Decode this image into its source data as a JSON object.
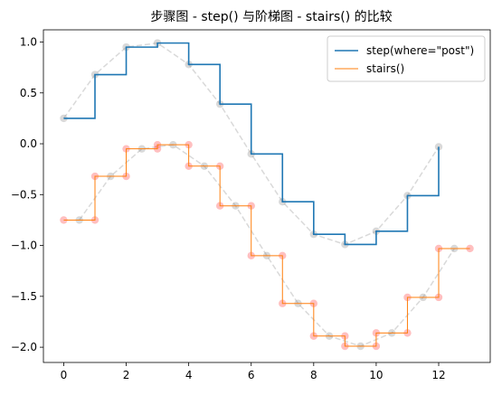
{
  "chart_data": {
    "type": "line",
    "title": "步骤图 - step()  与阶梯图 - stairs()  的比较",
    "xlabel": "",
    "ylabel": "",
    "xlim": [
      -0.65,
      13.65
    ],
    "ylim": [
      -2.15,
      1.12
    ],
    "x_ticks": [
      0,
      2,
      4,
      6,
      8,
      10,
      12
    ],
    "y_ticks": [
      1.0,
      0.5,
      0.0,
      -0.5,
      -1.0,
      -1.5,
      -2.0
    ],
    "x_tick_labels": [
      "0",
      "2",
      "4",
      "6",
      "8",
      "10",
      "12"
    ],
    "y_tick_labels": [
      "1.0",
      "0.5",
      "0.0",
      "−0.5",
      "−1.0",
      "−1.5",
      "−2.0"
    ],
    "grid": false,
    "legend_position": "top-right",
    "series": [
      {
        "name": "step(where=\"post\")",
        "kind": "step-post",
        "color": "#1f77b4",
        "x": [
          0,
          1,
          2,
          3,
          4,
          5,
          6,
          7,
          8,
          9,
          10,
          11,
          12
        ],
        "y": [
          0.25,
          0.68,
          0.95,
          0.99,
          0.78,
          0.39,
          -0.1,
          -0.57,
          -0.89,
          -0.99,
          -0.86,
          -0.51,
          -0.03
        ]
      },
      {
        "name": "stairs()",
        "kind": "stairs",
        "color": "#ff7f0e",
        "edges": [
          0,
          1,
          2,
          3,
          4,
          5,
          6,
          7,
          8,
          9,
          10,
          11,
          12,
          13
        ],
        "values": [
          -0.75,
          -0.32,
          -0.05,
          -0.01,
          -0.22,
          -0.61,
          -1.1,
          -1.57,
          -1.89,
          -1.99,
          -1.86,
          -1.51,
          -1.03
        ]
      }
    ],
    "reference_curves": [
      {
        "color": "#808080",
        "x": [
          0,
          1,
          2,
          3,
          4,
          5,
          6,
          7,
          8,
          9,
          10,
          11,
          12
        ],
        "y": [
          0.25,
          0.68,
          0.95,
          0.99,
          0.78,
          0.39,
          -0.1,
          -0.57,
          -0.89,
          -0.99,
          -0.86,
          -0.51,
          -0.03
        ]
      },
      {
        "color": "#808080",
        "x": [
          0.5,
          1.5,
          2.5,
          3.5,
          4.5,
          5.5,
          6.5,
          7.5,
          8.5,
          9.5,
          10.5,
          11.5,
          12.5
        ],
        "y": [
          -0.75,
          -0.32,
          -0.05,
          -0.01,
          -0.22,
          -0.61,
          -1.1,
          -1.57,
          -1.89,
          -1.99,
          -1.86,
          -1.51,
          -1.03
        ]
      }
    ],
    "edge_markers": {
      "color": "#ff6060",
      "x": [
        0,
        1,
        1,
        2,
        2,
        3,
        3,
        4,
        4,
        5,
        5,
        6,
        6,
        7,
        7,
        8,
        8,
        9,
        9,
        10,
        10,
        11,
        11,
        12,
        12,
        13
      ],
      "y": [
        -0.75,
        -0.75,
        -0.32,
        -0.32,
        -0.05,
        -0.05,
        -0.01,
        -0.01,
        -0.22,
        -0.22,
        -0.61,
        -0.61,
        -1.1,
        -1.1,
        -1.57,
        -1.57,
        -1.89,
        -1.89,
        -1.99,
        -1.99,
        -1.86,
        -1.86,
        -1.51,
        -1.51,
        -1.03,
        -1.03
      ]
    }
  }
}
